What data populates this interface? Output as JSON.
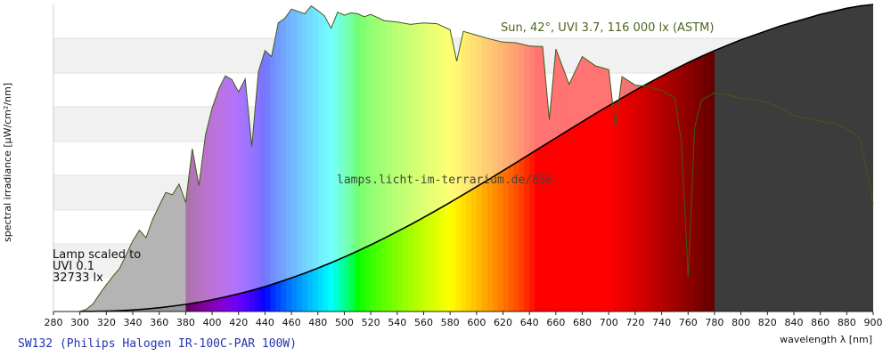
{
  "chart_data": {
    "type": "area",
    "code": "SW132 (Philips Halogen IR-100C-PAR 100W)",
    "xlabel": "wavelength λ [nm]",
    "ylabel": "spectral irradiance [µW/cm²/nm]",
    "xlim": [
      280,
      900
    ],
    "x_ticks": [
      "280",
      "300",
      "320",
      "340",
      "360",
      "380",
      "400",
      "420",
      "440",
      "460",
      "480",
      "500",
      "520",
      "540",
      "560",
      "580",
      "600",
      "620",
      "640",
      "660",
      "680",
      "700",
      "720",
      "740",
      "760",
      "780",
      "800",
      "820",
      "840",
      "860",
      "880",
      "900"
    ],
    "sun_label": "Sun, 42°, UVI 3.7, 116 000 lx (ASTM)",
    "lamp_note": [
      "Lamp scaled to",
      "UVI 0.1",
      "32733 lx"
    ],
    "watermark": "lamps.licht-im-terrarium.de/856",
    "grid": "horizontal bands",
    "series": [
      {
        "x": [
          300,
          310,
          320,
          330,
          340,
          350,
          360,
          370,
          380,
          390,
          400,
          410,
          420,
          430,
          440,
          450,
          460,
          470,
          480,
          490,
          500,
          510,
          520,
          530,
          540,
          550,
          560,
          570,
          580,
          590,
          600,
          610,
          620,
          630,
          640,
          650,
          660,
          670,
          680,
          690,
          700,
          710,
          720,
          730,
          740,
          750,
          760,
          770,
          780,
          790,
          800,
          810,
          820,
          830,
          840,
          850,
          860,
          870,
          880,
          890,
          900
        ],
        "y": [
          0.0,
          0.02,
          0.05,
          0.11,
          0.2,
          0.33,
          0.49,
          0.69,
          0.93,
          1.21,
          1.53,
          1.9,
          2.3,
          2.75,
          3.25,
          3.79,
          4.37,
          4.99,
          5.65,
          6.35,
          7.09,
          7.87,
          8.68,
          9.53,
          10.41,
          11.31,
          12.25,
          13.22,
          14.21,
          15.22,
          16.25,
          17.29,
          18.34,
          19.4,
          20.47,
          21.54,
          22.61,
          23.68,
          24.73,
          25.78,
          26.8,
          27.81,
          28.8,
          29.75,
          30.68,
          31.56,
          32.42,
          33.23,
          34.0,
          34.7,
          35.4,
          36.0,
          36.6,
          37.2,
          37.7,
          38.2,
          38.7,
          39.1,
          39.5,
          39.8,
          40.0
        ]
      },
      {
        "x": [
          300,
          305,
          310,
          315,
          320,
          325,
          330,
          335,
          340,
          345,
          350,
          355,
          360,
          365,
          370,
          375,
          380,
          385,
          390,
          395,
          400,
          405,
          410,
          415,
          420,
          425,
          430,
          435,
          440,
          445,
          450,
          455,
          460,
          465,
          470,
          475,
          480,
          485,
          490,
          495,
          500,
          505,
          510,
          515,
          520,
          530,
          540,
          550,
          560,
          570,
          580,
          585,
          590,
          600,
          610,
          620,
          630,
          640,
          650,
          655,
          660,
          670,
          680,
          690,
          700,
          705,
          710,
          720,
          730,
          740,
          750,
          755,
          760,
          765,
          770,
          780,
          790,
          800,
          810,
          820,
          830,
          840,
          850,
          860,
          870,
          880,
          890,
          895,
          900
        ],
        "y": [
          0.0,
          0.3,
          1.0,
          2.3,
          3.5,
          4.6,
          5.6,
          7.4,
          9.2,
          10.6,
          9.6,
          12.0,
          13.8,
          15.5,
          15.2,
          16.6,
          14.2,
          21.2,
          16.4,
          23.0,
          26.5,
          29.0,
          30.7,
          30.2,
          28.6,
          30.3,
          21.5,
          31.2,
          34.0,
          33.2,
          37.6,
          38.2,
          39.4,
          39.1,
          38.8,
          39.8,
          39.2,
          38.5,
          36.9,
          39.0,
          38.6,
          38.9,
          38.8,
          38.4,
          38.7,
          37.9,
          37.7,
          37.4,
          37.6,
          37.5,
          36.7,
          32.6,
          36.5,
          36.0,
          35.5,
          35.1,
          35.0,
          34.6,
          34.5,
          25.0,
          34.2,
          29.6,
          33.2,
          32.0,
          31.5,
          24.0,
          30.6,
          29.5,
          29.3,
          28.8,
          27.8,
          22.0,
          4.5,
          24.0,
          27.5,
          28.5,
          28.2,
          27.8,
          27.6,
          27.2,
          26.5,
          25.5,
          25.2,
          24.8,
          24.5,
          23.8,
          22.6,
          18.5,
          14.0
        ]
      }
    ]
  }
}
